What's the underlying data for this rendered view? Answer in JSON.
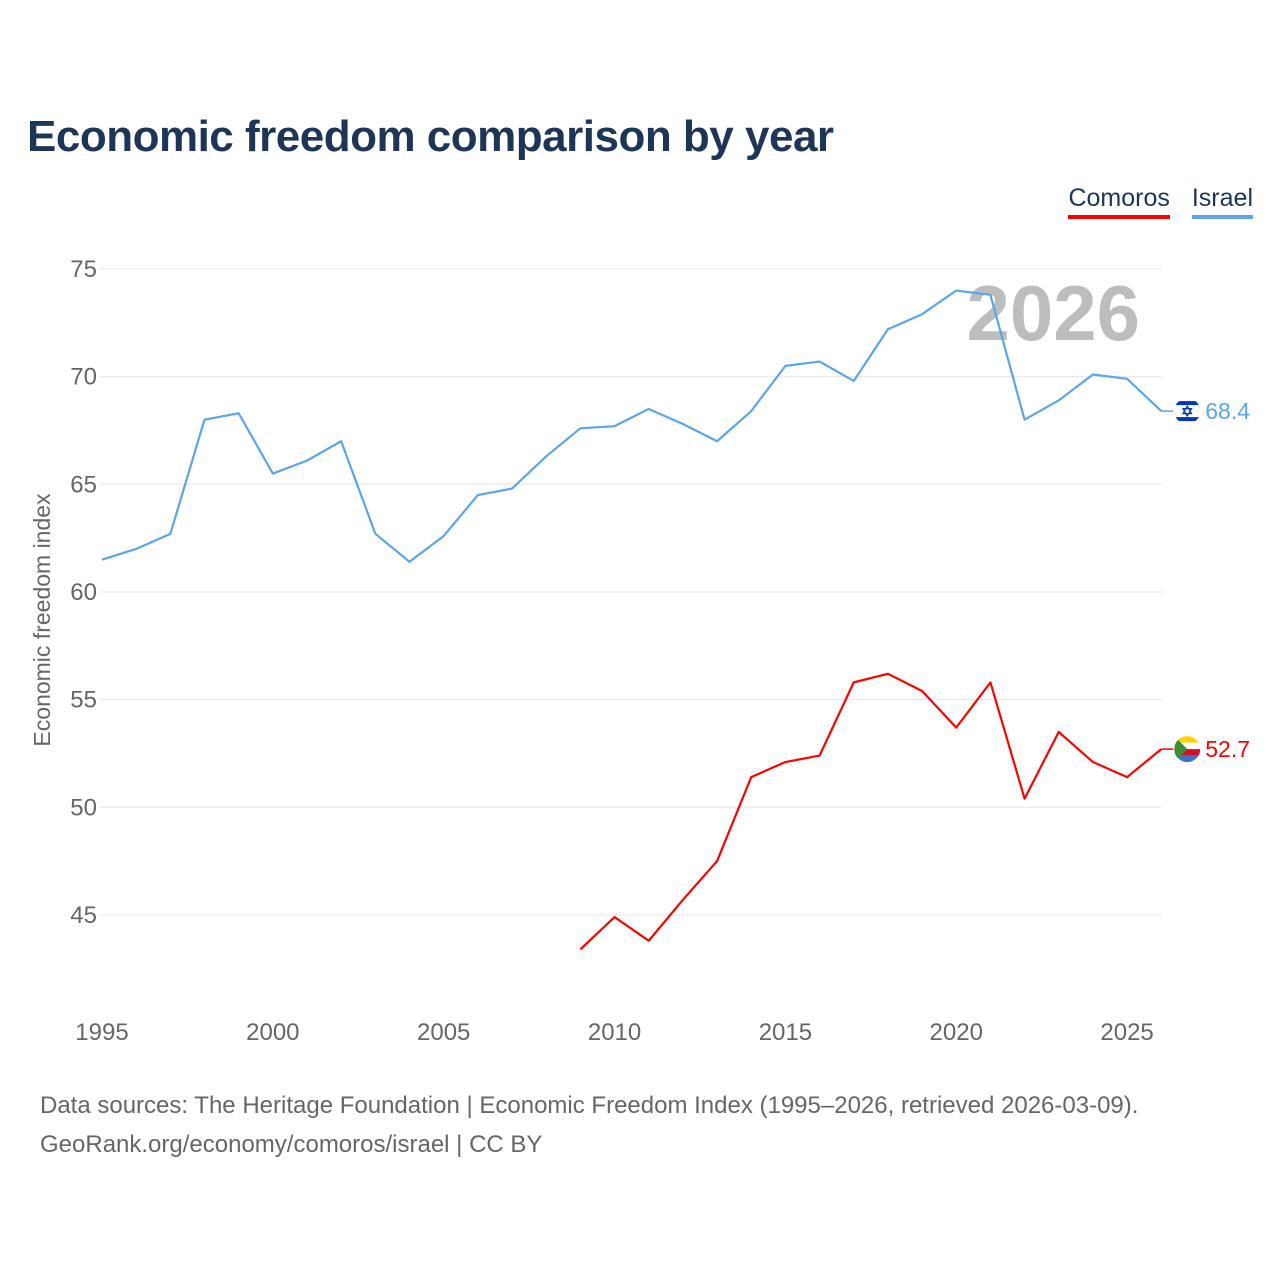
{
  "title": "Economic freedom comparison by year",
  "footer": {
    "line1": "Data sources: The Heritage Foundation | Economic Freedom Index (1995–2026, retrieved 2026-03-09).",
    "line2": "GeoRank.org/economy/comoros/israel | CC BY"
  },
  "chart_data": {
    "type": "line",
    "title": "Economic freedom comparison by year",
    "xlabel": "",
    "ylabel": "Economic freedom index",
    "xlim": [
      1995,
      2026
    ],
    "ylim": [
      41,
      76
    ],
    "xticks": [
      1995,
      2000,
      2005,
      2010,
      2015,
      2020,
      2025
    ],
    "yticks": [
      45,
      50,
      55,
      60,
      65,
      70,
      75
    ],
    "grid": true,
    "legend_position": "top-right",
    "year_watermark": "2026",
    "series": [
      {
        "name": "Comoros",
        "color": "#ff0000",
        "end_label": "52.7",
        "flag": "comoros-flag",
        "x": [
          2009,
          2010,
          2011,
          2012,
          2013,
          2014,
          2015,
          2016,
          2017,
          2018,
          2019,
          2020,
          2021,
          2022,
          2023,
          2024,
          2025,
          2026
        ],
        "values": [
          43.4,
          44.9,
          43.8,
          45.7,
          47.5,
          51.4,
          52.1,
          52.4,
          55.8,
          56.2,
          55.4,
          53.7,
          55.8,
          50.4,
          53.5,
          52.1,
          51.4,
          52.7
        ]
      },
      {
        "name": "Israel",
        "color": "#5ca5e8",
        "end_label": "68.4",
        "flag": "israel-flag",
        "x": [
          1995,
          1996,
          1997,
          1998,
          1999,
          2000,
          2001,
          2002,
          2003,
          2004,
          2005,
          2006,
          2007,
          2008,
          2009,
          2010,
          2011,
          2012,
          2013,
          2014,
          2015,
          2016,
          2017,
          2018,
          2019,
          2020,
          2021,
          2022,
          2023,
          2024,
          2025,
          2026
        ],
        "values": [
          61.5,
          62.0,
          62.7,
          68.0,
          68.3,
          65.5,
          66.1,
          67.0,
          62.7,
          61.4,
          62.6,
          64.5,
          64.8,
          66.3,
          67.6,
          67.7,
          68.5,
          67.8,
          67.0,
          68.4,
          70.5,
          70.7,
          69.8,
          72.2,
          72.9,
          74.0,
          73.8,
          68.0,
          68.9,
          70.1,
          69.9,
          68.4
        ]
      }
    ]
  }
}
